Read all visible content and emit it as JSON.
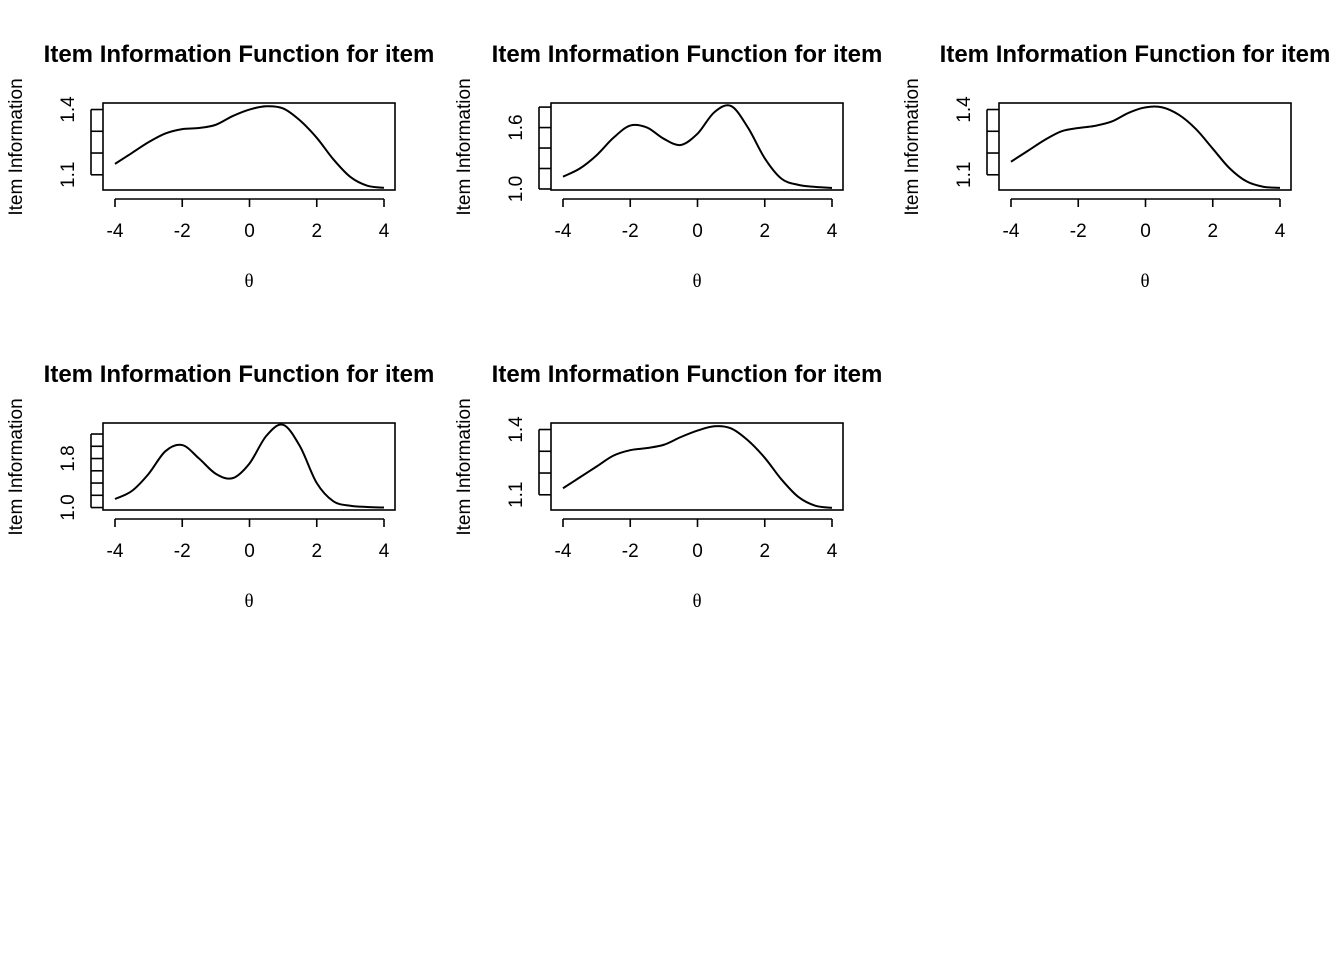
{
  "chart_data": [
    {
      "type": "line",
      "title": "Item Information Function for item",
      "xlabel": "θ",
      "ylabel": "Item Information",
      "xlim": [
        -4,
        4
      ],
      "ylim": [
        1.03,
        1.43
      ],
      "xticks": [
        "-4",
        "-2",
        "0",
        "2",
        "4"
      ],
      "yticks": [
        1.1,
        1.2,
        1.3,
        1.4
      ],
      "ytick_labels": [
        "1.1",
        "",
        "",
        "1.4"
      ],
      "grid": false,
      "x": [
        -4,
        -3.5,
        -3,
        -2.5,
        -2,
        -1.5,
        -1,
        -0.5,
        0,
        0.5,
        1,
        1.5,
        2,
        2.5,
        3,
        3.5,
        4
      ],
      "y": [
        1.15,
        1.2,
        1.25,
        1.29,
        1.31,
        1.315,
        1.33,
        1.37,
        1.4,
        1.415,
        1.405,
        1.35,
        1.27,
        1.17,
        1.09,
        1.05,
        1.04
      ]
    },
    {
      "type": "line",
      "title": "Item Information Function for item",
      "xlabel": "θ",
      "ylabel": "Item Information",
      "xlim": [
        -4,
        4
      ],
      "ylim": [
        0.99,
        1.84
      ],
      "xticks": [
        "-4",
        "-2",
        "0",
        "2",
        "4"
      ],
      "yticks": [
        1.0,
        1.2,
        1.4,
        1.6,
        1.8
      ],
      "ytick_labels": [
        "1.0",
        "",
        "",
        "1.6",
        ""
      ],
      "grid": false,
      "x": [
        -4,
        -3.5,
        -3,
        -2.5,
        -2,
        -1.5,
        -1,
        -0.5,
        0,
        0.5,
        1,
        1.5,
        2,
        2.5,
        3,
        3.5,
        4
      ],
      "y": [
        1.12,
        1.2,
        1.33,
        1.5,
        1.62,
        1.6,
        1.49,
        1.43,
        1.54,
        1.75,
        1.81,
        1.6,
        1.3,
        1.1,
        1.04,
        1.02,
        1.01
      ]
    },
    {
      "type": "line",
      "title": "Item Information Function for item",
      "xlabel": "θ",
      "ylabel": "Item Information",
      "xlim": [
        -4,
        4
      ],
      "ylim": [
        1.03,
        1.43
      ],
      "xticks": [
        "-4",
        "-2",
        "0",
        "2",
        "4"
      ],
      "yticks": [
        1.1,
        1.2,
        1.3,
        1.4
      ],
      "ytick_labels": [
        "1.1",
        "",
        "",
        "1.4"
      ],
      "grid": false,
      "x": [
        -4,
        -3.5,
        -3,
        -2.5,
        -2,
        -1.5,
        -1,
        -0.5,
        0,
        0.5,
        1,
        1.5,
        2,
        2.5,
        3,
        3.5,
        4
      ],
      "y": [
        1.16,
        1.21,
        1.26,
        1.3,
        1.315,
        1.325,
        1.345,
        1.385,
        1.41,
        1.41,
        1.375,
        1.31,
        1.22,
        1.13,
        1.07,
        1.045,
        1.04
      ]
    },
    {
      "type": "line",
      "title": "Item Information Function for item",
      "xlabel": "θ",
      "ylabel": "Item Information",
      "xlim": [
        -4,
        4
      ],
      "ylim": [
        0.96,
        2.38
      ],
      "xticks": [
        "-4",
        "-2",
        "0",
        "2",
        "4"
      ],
      "yticks": [
        1.0,
        1.2,
        1.4,
        1.6,
        1.8,
        2.0,
        2.2
      ],
      "ytick_labels": [
        "1.0",
        "",
        "",
        "",
        "1.8",
        "",
        ""
      ],
      "grid": false,
      "x": [
        -4,
        -3.5,
        -3,
        -2.5,
        -2,
        -1.5,
        -1,
        -0.5,
        0,
        0.5,
        1,
        1.5,
        2,
        2.5,
        3,
        3.5,
        4
      ],
      "y": [
        1.14,
        1.27,
        1.55,
        1.92,
        2.02,
        1.8,
        1.55,
        1.48,
        1.72,
        2.17,
        2.35,
        2.0,
        1.4,
        1.1,
        1.03,
        1.01,
        1.0
      ]
    },
    {
      "type": "line",
      "title": "Item Information Function for item",
      "xlabel": "θ",
      "ylabel": "Item Information",
      "xlim": [
        -4,
        4
      ],
      "ylim": [
        1.03,
        1.43
      ],
      "xticks": [
        "-4",
        "-2",
        "0",
        "2",
        "4"
      ],
      "yticks": [
        1.1,
        1.2,
        1.3,
        1.4
      ],
      "ytick_labels": [
        "1.1",
        "",
        "",
        "1.4"
      ],
      "grid": false,
      "x": [
        -4,
        -3.5,
        -3,
        -2.5,
        -2,
        -1.5,
        -1,
        -0.5,
        0,
        0.5,
        1,
        1.5,
        2,
        2.5,
        3,
        3.5,
        4
      ],
      "y": [
        1.13,
        1.18,
        1.23,
        1.28,
        1.305,
        1.315,
        1.33,
        1.365,
        1.395,
        1.415,
        1.405,
        1.35,
        1.27,
        1.17,
        1.09,
        1.05,
        1.04
      ]
    }
  ]
}
